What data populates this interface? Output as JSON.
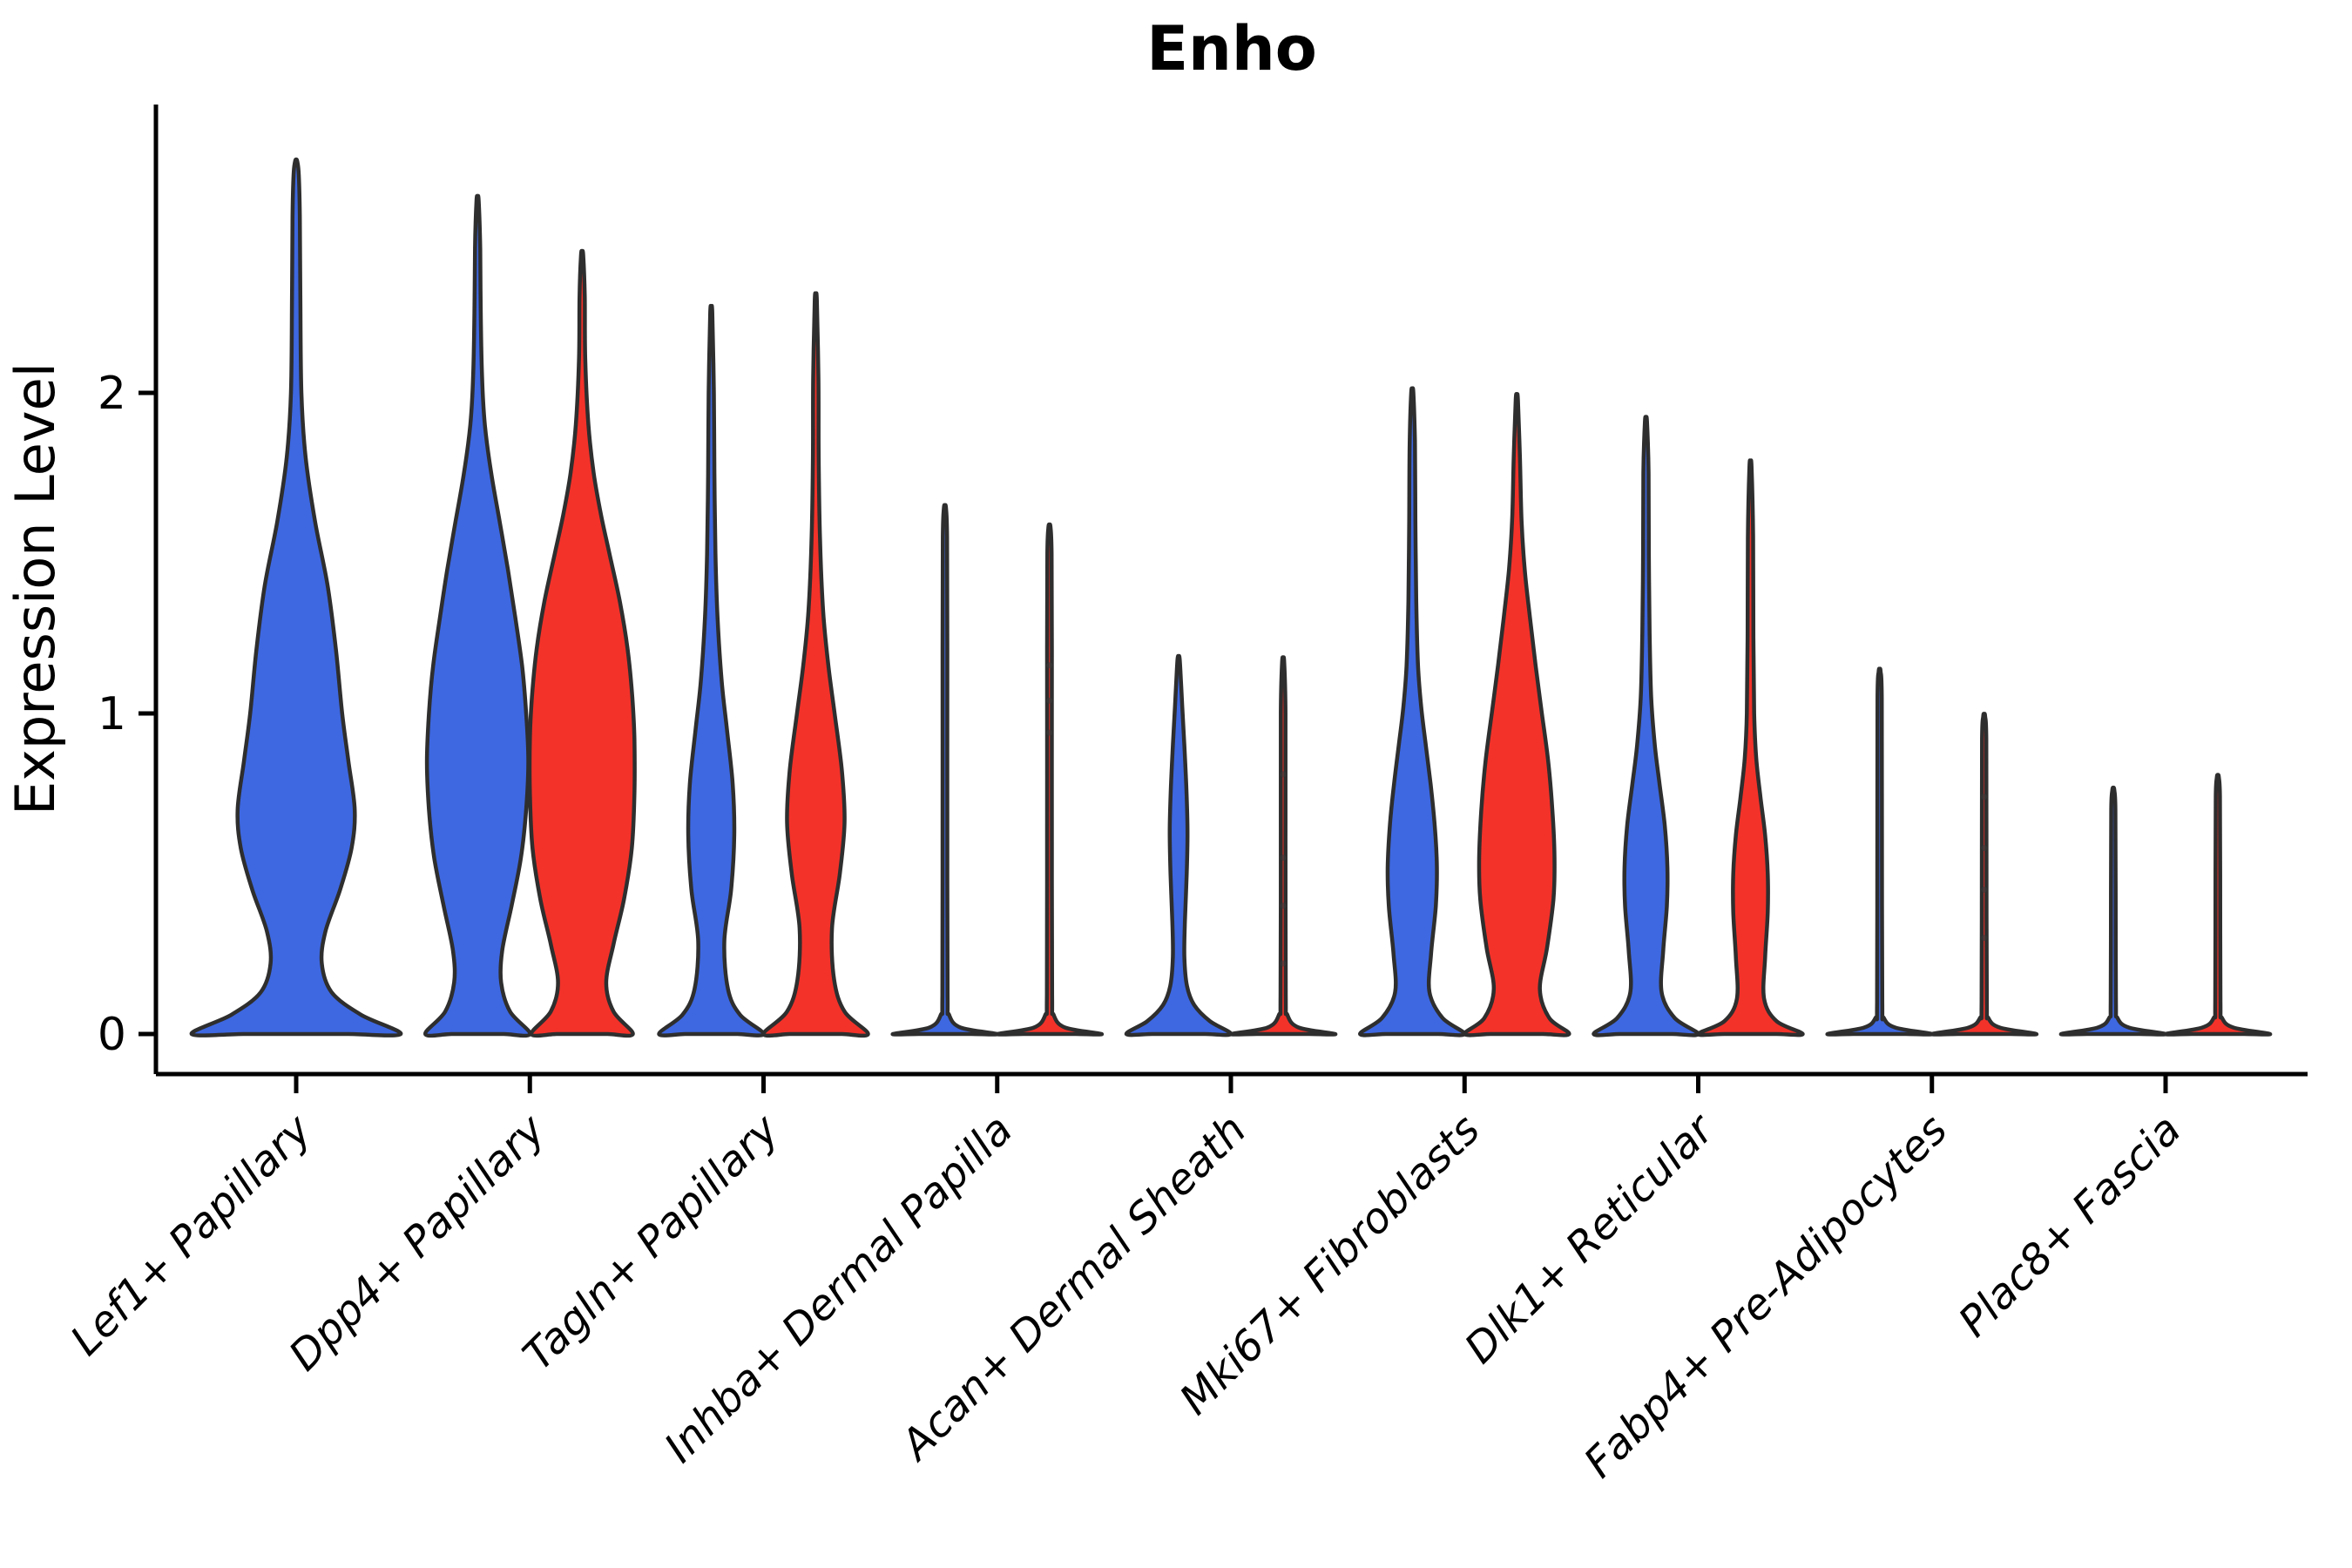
{
  "chart_data": {
    "type": "violin",
    "title": "Enho",
    "ylabel": "Expression Level",
    "yticks": [
      0,
      1,
      2
    ],
    "ylim": [
      0,
      2.9
    ],
    "grid": false,
    "legend_position": "none",
    "colors": {
      "blue": "#3E68E1",
      "red": "#F3322A",
      "outline": "#2E2E2E",
      "axis": "#000000",
      "dot": "#3A3A3A"
    },
    "categories": [
      "Lef1+ Papillary",
      "Dpp4+ Papillary",
      "Tagln+ Papillary",
      "Inhba+ Dermal Papilla",
      "Acan+ Dermal Sheath",
      "Mki67+ Fibroblasts",
      "Dlk1+ Reticular",
      "Fabp4+ Pre-Adipocytes",
      "Plac8+ Fascia"
    ],
    "violins": [
      {
        "category_index": 0,
        "category": "Lef1+ Papillary",
        "group": "blue",
        "position": "full",
        "max_expression": 2.72,
        "profile": [
          [
            0,
            1.0
          ],
          [
            0.06,
            0.62
          ],
          [
            0.13,
            0.34
          ],
          [
            0.22,
            0.245
          ],
          [
            0.32,
            0.28
          ],
          [
            0.45,
            0.42
          ],
          [
            0.58,
            0.53
          ],
          [
            0.7,
            0.56
          ],
          [
            0.85,
            0.5
          ],
          [
            1.0,
            0.44
          ],
          [
            1.2,
            0.38
          ],
          [
            1.4,
            0.3
          ],
          [
            1.6,
            0.18
          ],
          [
            1.8,
            0.09
          ],
          [
            2.0,
            0.05
          ],
          [
            2.3,
            0.04
          ],
          [
            2.55,
            0.035
          ],
          [
            2.68,
            0.025
          ],
          [
            2.72,
            0.012
          ]
        ],
        "dots": []
      },
      {
        "category_index": 1,
        "category": "Dpp4+ Papillary",
        "group": "blue",
        "position": "left",
        "max_expression": 2.6,
        "profile": [
          [
            0,
            1.0
          ],
          [
            0.07,
            0.62
          ],
          [
            0.16,
            0.45
          ],
          [
            0.26,
            0.47
          ],
          [
            0.4,
            0.65
          ],
          [
            0.55,
            0.83
          ],
          [
            0.7,
            0.93
          ],
          [
            0.85,
            0.97
          ],
          [
            1.0,
            0.93
          ],
          [
            1.15,
            0.85
          ],
          [
            1.3,
            0.72
          ],
          [
            1.45,
            0.58
          ],
          [
            1.6,
            0.42
          ],
          [
            1.75,
            0.26
          ],
          [
            1.9,
            0.14
          ],
          [
            2.05,
            0.085
          ],
          [
            2.25,
            0.06
          ],
          [
            2.45,
            0.05
          ],
          [
            2.6,
            0.02
          ]
        ],
        "dots": []
      },
      {
        "category_index": 1,
        "category": "Dpp4+ Papillary",
        "group": "red",
        "position": "right",
        "max_expression": 2.43,
        "profile": [
          [
            0,
            0.97
          ],
          [
            0.07,
            0.6
          ],
          [
            0.16,
            0.46
          ],
          [
            0.28,
            0.6
          ],
          [
            0.42,
            0.8
          ],
          [
            0.58,
            0.95
          ],
          [
            0.75,
            1.0
          ],
          [
            0.92,
            1.0
          ],
          [
            1.05,
            0.96
          ],
          [
            1.2,
            0.87
          ],
          [
            1.35,
            0.72
          ],
          [
            1.5,
            0.52
          ],
          [
            1.62,
            0.36
          ],
          [
            1.75,
            0.22
          ],
          [
            1.9,
            0.12
          ],
          [
            2.1,
            0.06
          ],
          [
            2.3,
            0.05
          ],
          [
            2.43,
            0.02
          ]
        ],
        "dots": []
      },
      {
        "category_index": 2,
        "category": "Tagln+ Papillary",
        "group": "blue",
        "position": "left",
        "max_expression": 2.25,
        "profile": [
          [
            0,
            1.0
          ],
          [
            0.06,
            0.55
          ],
          [
            0.14,
            0.32
          ],
          [
            0.29,
            0.25
          ],
          [
            0.45,
            0.38
          ],
          [
            0.62,
            0.44
          ],
          [
            0.78,
            0.41
          ],
          [
            0.95,
            0.3
          ],
          [
            1.1,
            0.2
          ],
          [
            1.3,
            0.12
          ],
          [
            1.5,
            0.08
          ],
          [
            1.75,
            0.06
          ],
          [
            2.0,
            0.05
          ],
          [
            2.25,
            0.02
          ]
        ],
        "dots": []
      },
      {
        "category_index": 2,
        "category": "Tagln+ Papillary",
        "group": "red",
        "position": "right",
        "max_expression": 2.29,
        "profile": [
          [
            0,
            1.0
          ],
          [
            0.07,
            0.55
          ],
          [
            0.17,
            0.35
          ],
          [
            0.33,
            0.31
          ],
          [
            0.5,
            0.46
          ],
          [
            0.66,
            0.55
          ],
          [
            0.82,
            0.5
          ],
          [
            1.0,
            0.36
          ],
          [
            1.15,
            0.24
          ],
          [
            1.32,
            0.14
          ],
          [
            1.55,
            0.08
          ],
          [
            1.8,
            0.055
          ],
          [
            2.05,
            0.05
          ],
          [
            2.29,
            0.02
          ]
        ],
        "dots": []
      },
      {
        "category_index": 3,
        "category": "Inhba+ Dermal Papilla",
        "group": "blue",
        "position": "left",
        "max_expression": 1.64,
        "profile": [
          [
            0,
            1.0
          ],
          [
            0.02,
            0.3
          ],
          [
            0.06,
            0.08
          ],
          [
            0.12,
            0.05
          ],
          [
            0.6,
            0.045
          ],
          [
            1.2,
            0.045
          ],
          [
            1.55,
            0.04
          ],
          [
            1.64,
            0.02
          ]
        ],
        "dots": []
      },
      {
        "category_index": 3,
        "category": "Inhba+ Dermal Papilla",
        "group": "red",
        "position": "right",
        "max_expression": 1.58,
        "profile": [
          [
            0,
            1.0
          ],
          [
            0.02,
            0.3
          ],
          [
            0.06,
            0.08
          ],
          [
            0.12,
            0.05
          ],
          [
            0.6,
            0.045
          ],
          [
            1.2,
            0.045
          ],
          [
            1.5,
            0.04
          ],
          [
            1.58,
            0.02
          ]
        ],
        "dots": [
          1.15,
          1.04,
          0.94
        ]
      },
      {
        "category_index": 4,
        "category": "Acan+ Dermal Sheath",
        "group": "blue",
        "position": "left",
        "max_expression": 1.17,
        "profile": [
          [
            0,
            1.0
          ],
          [
            0.04,
            0.6
          ],
          [
            0.09,
            0.3
          ],
          [
            0.15,
            0.16
          ],
          [
            0.24,
            0.11
          ],
          [
            0.35,
            0.12
          ],
          [
            0.5,
            0.155
          ],
          [
            0.63,
            0.17
          ],
          [
            0.76,
            0.15
          ],
          [
            0.9,
            0.11
          ],
          [
            1.02,
            0.07
          ],
          [
            1.1,
            0.045
          ],
          [
            1.17,
            0.02
          ]
        ],
        "dots": []
      },
      {
        "category_index": 4,
        "category": "Acan+ Dermal Sheath",
        "group": "red",
        "position": "right",
        "max_expression": 1.16,
        "profile": [
          [
            0,
            1.0
          ],
          [
            0.02,
            0.3
          ],
          [
            0.06,
            0.08
          ],
          [
            0.12,
            0.05
          ],
          [
            0.6,
            0.045
          ],
          [
            1.0,
            0.045
          ],
          [
            1.16,
            0.02
          ]
        ],
        "dots": [
          0.81,
          0.55,
          0.4,
          0.22
        ]
      },
      {
        "category_index": 5,
        "category": "Mki67+ Fibroblasts",
        "group": "blue",
        "position": "left",
        "max_expression": 2.0,
        "profile": [
          [
            0,
            1.0
          ],
          [
            0.05,
            0.58
          ],
          [
            0.13,
            0.33
          ],
          [
            0.25,
            0.36
          ],
          [
            0.4,
            0.45
          ],
          [
            0.52,
            0.47
          ],
          [
            0.65,
            0.43
          ],
          [
            0.78,
            0.35
          ],
          [
            0.9,
            0.26
          ],
          [
            1.02,
            0.17
          ],
          [
            1.15,
            0.11
          ],
          [
            1.35,
            0.075
          ],
          [
            1.6,
            0.06
          ],
          [
            1.85,
            0.05
          ],
          [
            2.0,
            0.02
          ]
        ],
        "dots": []
      },
      {
        "category_index": 5,
        "category": "Mki67+ Fibroblasts",
        "group": "red",
        "position": "right",
        "max_expression": 1.98,
        "profile": [
          [
            0,
            1.0
          ],
          [
            0.05,
            0.62
          ],
          [
            0.14,
            0.44
          ],
          [
            0.27,
            0.58
          ],
          [
            0.42,
            0.7
          ],
          [
            0.55,
            0.72
          ],
          [
            0.7,
            0.68
          ],
          [
            0.85,
            0.6
          ],
          [
            1.0,
            0.48
          ],
          [
            1.15,
            0.36
          ],
          [
            1.3,
            0.25
          ],
          [
            1.45,
            0.15
          ],
          [
            1.6,
            0.09
          ],
          [
            1.8,
            0.06
          ],
          [
            1.98,
            0.02
          ]
        ],
        "dots": []
      },
      {
        "category_index": 6,
        "category": "Dlk1+ Reticular",
        "group": "blue",
        "position": "left",
        "max_expression": 1.91,
        "profile": [
          [
            0,
            1.0
          ],
          [
            0.05,
            0.55
          ],
          [
            0.13,
            0.3
          ],
          [
            0.26,
            0.33
          ],
          [
            0.4,
            0.4
          ],
          [
            0.52,
            0.41
          ],
          [
            0.65,
            0.36
          ],
          [
            0.78,
            0.26
          ],
          [
            0.9,
            0.17
          ],
          [
            1.05,
            0.1
          ],
          [
            1.25,
            0.07
          ],
          [
            1.5,
            0.055
          ],
          [
            1.75,
            0.05
          ],
          [
            1.91,
            0.02
          ]
        ],
        "dots": []
      },
      {
        "category_index": 6,
        "category": "Dlk1+ Reticular",
        "group": "red",
        "position": "right",
        "max_expression": 1.77,
        "profile": [
          [
            0,
            1.0
          ],
          [
            0.04,
            0.5
          ],
          [
            0.11,
            0.26
          ],
          [
            0.24,
            0.28
          ],
          [
            0.38,
            0.33
          ],
          [
            0.5,
            0.33
          ],
          [
            0.62,
            0.28
          ],
          [
            0.74,
            0.19
          ],
          [
            0.86,
            0.11
          ],
          [
            1.0,
            0.07
          ],
          [
            1.25,
            0.055
          ],
          [
            1.55,
            0.05
          ],
          [
            1.77,
            0.02
          ]
        ],
        "dots": []
      },
      {
        "category_index": 7,
        "category": "Fabp4+ Pre-Adipocytes",
        "group": "blue",
        "position": "left",
        "max_expression": 1.13,
        "profile": [
          [
            0,
            1.0
          ],
          [
            0.02,
            0.3
          ],
          [
            0.05,
            0.08
          ],
          [
            0.1,
            0.05
          ],
          [
            0.6,
            0.045
          ],
          [
            1.05,
            0.04
          ],
          [
            1.13,
            0.02
          ]
        ],
        "dots": []
      },
      {
        "category_index": 7,
        "category": "Fabp4+ Pre-Adipocytes",
        "group": "red",
        "position": "right",
        "max_expression": 0.99,
        "profile": [
          [
            0,
            1.0
          ],
          [
            0.02,
            0.3
          ],
          [
            0.05,
            0.08
          ],
          [
            0.1,
            0.05
          ],
          [
            0.55,
            0.045
          ],
          [
            0.92,
            0.04
          ],
          [
            0.99,
            0.02
          ]
        ],
        "dots": [
          0.3,
          0.45,
          0.58,
          0.74
        ]
      },
      {
        "category_index": 8,
        "category": "Plac8+ Fascia",
        "group": "blue",
        "position": "left",
        "max_expression": 0.76,
        "profile": [
          [
            0,
            1.0
          ],
          [
            0.02,
            0.3
          ],
          [
            0.05,
            0.08
          ],
          [
            0.1,
            0.05
          ],
          [
            0.45,
            0.045
          ],
          [
            0.7,
            0.04
          ],
          [
            0.76,
            0.02
          ]
        ],
        "dots": []
      },
      {
        "category_index": 8,
        "category": "Plac8+ Fascia",
        "group": "red",
        "position": "right",
        "max_expression": 0.8,
        "profile": [
          [
            0,
            1.0
          ],
          [
            0.02,
            0.3
          ],
          [
            0.05,
            0.08
          ],
          [
            0.1,
            0.05
          ],
          [
            0.5,
            0.045
          ],
          [
            0.74,
            0.04
          ],
          [
            0.8,
            0.02
          ]
        ],
        "dots": []
      }
    ]
  }
}
